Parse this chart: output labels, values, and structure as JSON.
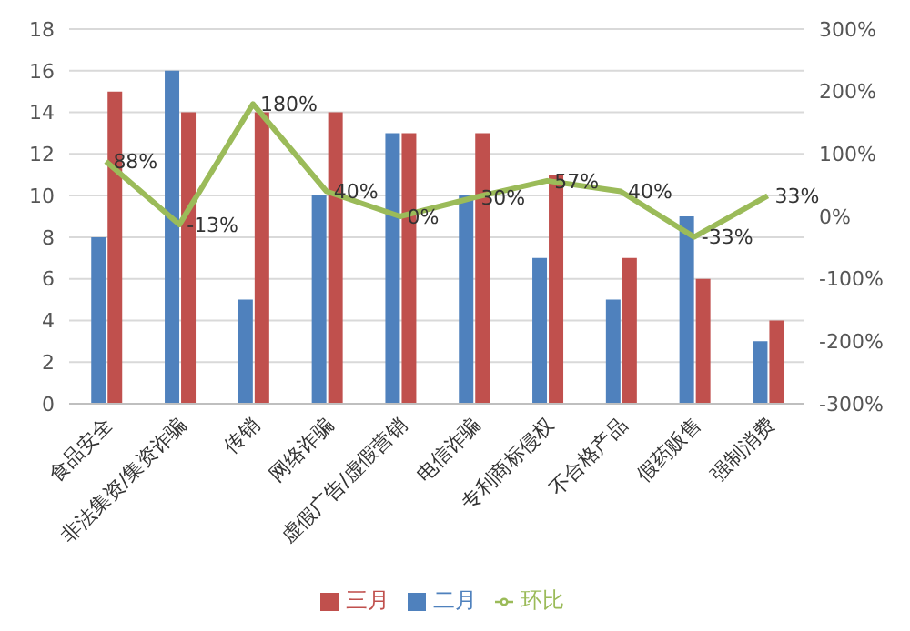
{
  "chart_data": {
    "type": "bar",
    "categories": [
      "食品安全",
      "非法集资/集资诈骗",
      "传销",
      "网络诈骗",
      "虚假广告/虚假营销",
      "电信诈骗",
      "专利商标侵权",
      "不合格产品",
      "假药贩售",
      "强制消费"
    ],
    "series": [
      {
        "name": "二月",
        "color": "#4f81bd",
        "values": [
          8,
          16,
          5,
          10,
          13,
          10,
          7,
          5,
          9,
          3
        ]
      },
      {
        "name": "三月",
        "color": "#c0504d",
        "values": [
          15,
          14,
          14,
          14,
          13,
          13,
          11,
          7,
          6,
          4
        ]
      },
      {
        "name": "环比",
        "type": "line",
        "axis": "y2",
        "color": "#9bbb59",
        "marker": "none",
        "values": [
          88,
          -13,
          180,
          40,
          0,
          30,
          57,
          40,
          -33,
          33
        ],
        "value_labels": [
          "88%",
          "-13%",
          "180%",
          "40%",
          "0%",
          "30%",
          "57%",
          "40%",
          "-33%",
          "33%"
        ]
      }
    ],
    "ylim": [
      0,
      18
    ],
    "yticks": [
      0,
      2,
      4,
      6,
      8,
      10,
      12,
      14,
      16,
      18
    ],
    "y2lim": [
      -300,
      300
    ],
    "y2ticks": [
      {
        "value": -300,
        "label": "-300%"
      },
      {
        "value": -200,
        "label": "-200%"
      },
      {
        "value": -100,
        "label": "-100%"
      },
      {
        "value": 0,
        "label": "0%"
      },
      {
        "value": 100,
        "label": "100%"
      },
      {
        "value": 200,
        "label": "200%"
      },
      {
        "value": 300,
        "label": "300%"
      }
    ],
    "grid": "y",
    "legend": "bottom"
  }
}
